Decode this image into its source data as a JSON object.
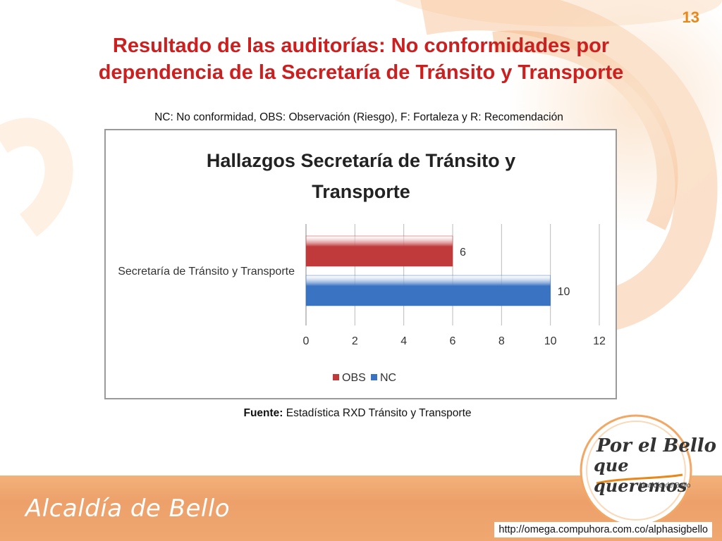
{
  "page_number": "13",
  "title_line1": "Resultado de las auditorías: No conformidades por",
  "title_line2": "dependencia de la Secretaría de Tránsito y Transporte",
  "subtitle": "NC: No conformidad, OBS: Observación (Riesgo), F: Fortaleza y R: Recomendación",
  "source_label": "Fuente:",
  "source_text": " Estadística RXD Tránsito y Transporte",
  "footer_brand": "Alcaldía de Bello",
  "footer_url": "http://omega.compuhora.com.co/alphasigbello",
  "logo": {
    "line1": "Por el Bello",
    "line2": "que queremos",
    "sub": "Alcaldía de Bello"
  },
  "colors": {
    "title": "#cc1f1f",
    "obs": "#c0393b",
    "nc": "#3a73c2",
    "accent": "#e8871a"
  },
  "chart_data": {
    "type": "bar",
    "orientation": "horizontal",
    "title_line1": "Hallazgos  Secretaría de Tránsito y",
    "title_line2": "Transporte",
    "categories": [
      "Secretaría de Tránsito y Transporte"
    ],
    "series": [
      {
        "name": "OBS",
        "values": [
          6
        ]
      },
      {
        "name": "NC",
        "values": [
          10
        ]
      }
    ],
    "xlim": [
      0,
      12
    ],
    "x_ticks": [
      "0",
      "2",
      "4",
      "6",
      "8",
      "10",
      "12"
    ],
    "grid": true,
    "legend_position": "bottom"
  }
}
